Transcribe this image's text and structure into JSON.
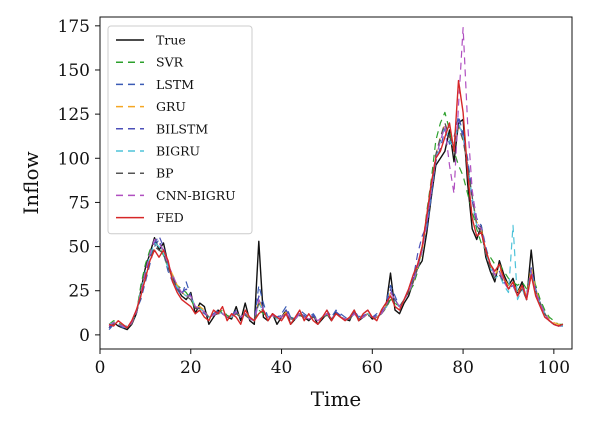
{
  "chart_data": {
    "type": "line",
    "xlabel": "Time",
    "ylabel": "Inflow",
    "xlim": [
      0,
      104
    ],
    "ylim": [
      -8,
      180
    ],
    "xticks": [
      0,
      20,
      40,
      60,
      80,
      100
    ],
    "yticks": [
      0,
      25,
      50,
      75,
      100,
      125,
      150,
      175
    ],
    "grid": false,
    "legend_position": "top-left",
    "x": [
      2,
      3,
      4,
      5,
      6,
      7,
      8,
      9,
      10,
      11,
      12,
      13,
      14,
      15,
      16,
      17,
      18,
      19,
      20,
      21,
      22,
      23,
      24,
      25,
      26,
      27,
      28,
      29,
      30,
      31,
      32,
      33,
      34,
      35,
      36,
      37,
      38,
      39,
      40,
      41,
      42,
      43,
      44,
      45,
      46,
      47,
      48,
      49,
      50,
      51,
      52,
      53,
      54,
      55,
      56,
      57,
      58,
      59,
      60,
      61,
      62,
      63,
      64,
      65,
      66,
      67,
      68,
      69,
      70,
      71,
      72,
      73,
      74,
      75,
      76,
      77,
      78,
      79,
      80,
      81,
      82,
      83,
      84,
      85,
      86,
      87,
      88,
      89,
      90,
      91,
      92,
      93,
      94,
      95,
      96,
      97,
      98,
      99,
      100,
      101,
      102
    ],
    "series": [
      {
        "name": "True",
        "color": "#111111",
        "dash": "solid",
        "values": [
          4,
          7,
          5,
          4,
          3,
          6,
          12,
          25,
          38,
          46,
          55,
          48,
          52,
          40,
          33,
          26,
          22,
          20,
          24,
          12,
          18,
          16,
          6,
          10,
          14,
          12,
          10,
          9,
          16,
          8,
          18,
          8,
          6,
          53,
          10,
          8,
          12,
          6,
          10,
          14,
          6,
          9,
          12,
          10,
          8,
          11,
          6,
          9,
          12,
          8,
          13,
          10,
          9,
          8,
          14,
          8,
          10,
          12,
          9,
          10,
          12,
          16,
          35,
          14,
          12,
          18,
          22,
          30,
          38,
          42,
          58,
          78,
          96,
          100,
          104,
          116,
          98,
          120,
          122,
          86,
          60,
          54,
          62,
          44,
          36,
          30,
          42,
          34,
          28,
          32,
          24,
          30,
          20,
          48,
          24,
          18,
          12,
          8,
          6,
          5,
          6
        ]
      },
      {
        "name": "SVR",
        "color": "#2ca02c",
        "dash": "7,5",
        "values": [
          6,
          8,
          7,
          5,
          5,
          7,
          12,
          28,
          40,
          48,
          52,
          50,
          45,
          38,
          34,
          28,
          26,
          24,
          20,
          15,
          16,
          12,
          10,
          11,
          12,
          14,
          11,
          10,
          12,
          10,
          12,
          9,
          8,
          14,
          12,
          10,
          11,
          9,
          10,
          12,
          10,
          9,
          11,
          10,
          9,
          10,
          9,
          10,
          11,
          9,
          12,
          10,
          9,
          9,
          12,
          9,
          10,
          11,
          10,
          10,
          12,
          15,
          20,
          18,
          16,
          20,
          24,
          28,
          36,
          48,
          70,
          88,
          110,
          120,
          126,
          116,
          104,
          96,
          90,
          80,
          70,
          60,
          52,
          48,
          44,
          40,
          40,
          36,
          32,
          30,
          28,
          30,
          26,
          36,
          28,
          20,
          14,
          10,
          8,
          6,
          6
        ]
      },
      {
        "name": "LSTM",
        "color": "#3b5bb5",
        "dash": "7,5",
        "values": [
          3,
          6,
          6,
          4,
          4,
          8,
          14,
          20,
          30,
          40,
          50,
          54,
          46,
          36,
          30,
          26,
          22,
          30,
          22,
          16,
          14,
          12,
          10,
          12,
          14,
          12,
          10,
          11,
          14,
          10,
          12,
          10,
          8,
          28,
          18,
          10,
          12,
          10,
          12,
          16,
          10,
          9,
          14,
          12,
          10,
          12,
          8,
          10,
          14,
          10,
          14,
          12,
          10,
          9,
          14,
          10,
          12,
          14,
          10,
          12,
          14,
          18,
          28,
          22,
          16,
          20,
          26,
          32,
          40,
          50,
          60,
          78,
          100,
          110,
          118,
          108,
          112,
          124,
          114,
          100,
          80,
          66,
          62,
          50,
          40,
          34,
          36,
          30,
          26,
          28,
          22,
          26,
          20,
          34,
          24,
          18,
          12,
          8,
          6,
          5,
          5
        ]
      },
      {
        "name": "GRU",
        "color": "#f5a623",
        "dash": "7,5",
        "values": [
          5,
          7,
          6,
          5,
          4,
          7,
          13,
          24,
          36,
          44,
          52,
          50,
          48,
          40,
          34,
          28,
          24,
          22,
          22,
          16,
          16,
          14,
          10,
          11,
          13,
          12,
          10,
          10,
          13,
          10,
          12,
          9,
          8,
          20,
          14,
          10,
          11,
          9,
          10,
          13,
          9,
          9,
          12,
          10,
          9,
          10,
          8,
          10,
          12,
          9,
          12,
          10,
          9,
          9,
          12,
          9,
          10,
          12,
          10,
          10,
          12,
          16,
          24,
          20,
          16,
          20,
          24,
          30,
          38,
          48,
          64,
          82,
          102,
          112,
          120,
          112,
          108,
          118,
          110,
          96,
          78,
          64,
          60,
          48,
          40,
          34,
          38,
          32,
          28,
          30,
          24,
          28,
          22,
          38,
          26,
          18,
          12,
          9,
          7,
          6,
          6
        ]
      },
      {
        "name": "BILSTM",
        "color": "#4b4fb8",
        "dash": "7,5",
        "values": [
          4,
          6,
          6,
          5,
          4,
          7,
          12,
          22,
          34,
          44,
          52,
          56,
          50,
          40,
          32,
          26,
          24,
          26,
          22,
          16,
          15,
          13,
          10,
          11,
          13,
          12,
          10,
          10,
          13,
          10,
          12,
          9,
          8,
          22,
          15,
          10,
          11,
          10,
          11,
          14,
          10,
          9,
          12,
          11,
          9,
          11,
          8,
          10,
          12,
          9,
          13,
          11,
          9,
          9,
          13,
          9,
          11,
          12,
          10,
          11,
          13,
          16,
          26,
          20,
          16,
          20,
          25,
          32,
          46,
          56,
          62,
          80,
          98,
          106,
          116,
          110,
          106,
          122,
          112,
          98,
          76,
          62,
          58,
          48,
          40,
          34,
          36,
          30,
          26,
          28,
          22,
          28,
          22,
          38,
          26,
          18,
          12,
          8,
          6,
          5,
          5
        ]
      },
      {
        "name": "BIGRU",
        "color": "#4fc3d9",
        "dash": "7,5",
        "values": [
          6,
          7,
          6,
          5,
          5,
          7,
          13,
          24,
          36,
          45,
          52,
          50,
          46,
          38,
          32,
          27,
          24,
          22,
          22,
          16,
          15,
          13,
          10,
          11,
          13,
          12,
          10,
          10,
          12,
          10,
          12,
          9,
          8,
          18,
          13,
          10,
          11,
          9,
          10,
          12,
          9,
          9,
          12,
          10,
          9,
          10,
          8,
          10,
          12,
          9,
          12,
          10,
          9,
          9,
          12,
          9,
          10,
          12,
          10,
          10,
          12,
          15,
          22,
          18,
          16,
          20,
          24,
          30,
          38,
          48,
          64,
          82,
          100,
          110,
          118,
          110,
          106,
          120,
          112,
          96,
          78,
          62,
          58,
          46,
          38,
          32,
          34,
          28,
          24,
          62,
          20,
          26,
          20,
          36,
          24,
          18,
          12,
          8,
          6,
          5,
          5
        ]
      },
      {
        "name": "BP",
        "color": "#555555",
        "dash": "7,5",
        "values": [
          5,
          6,
          6,
          5,
          4,
          6,
          12,
          22,
          34,
          42,
          50,
          48,
          46,
          38,
          32,
          26,
          24,
          22,
          20,
          15,
          15,
          13,
          10,
          11,
          12,
          12,
          10,
          10,
          12,
          10,
          11,
          9,
          8,
          18,
          13,
          10,
          11,
          9,
          10,
          12,
          9,
          9,
          11,
          10,
          9,
          10,
          8,
          10,
          11,
          9,
          12,
          10,
          9,
          9,
          12,
          9,
          10,
          11,
          10,
          10,
          12,
          15,
          22,
          18,
          16,
          20,
          24,
          30,
          38,
          50,
          66,
          84,
          102,
          112,
          120,
          112,
          108,
          118,
          110,
          96,
          78,
          62,
          58,
          46,
          38,
          32,
          34,
          30,
          26,
          28,
          22,
          26,
          20,
          34,
          24,
          18,
          12,
          8,
          6,
          5,
          5
        ]
      },
      {
        "name": "CNN-BIGRU",
        "color": "#b04fc0",
        "dash": "7,5",
        "values": [
          5,
          7,
          6,
          5,
          4,
          7,
          13,
          24,
          36,
          46,
          54,
          52,
          48,
          40,
          34,
          28,
          24,
          22,
          22,
          16,
          15,
          13,
          10,
          11,
          13,
          12,
          10,
          10,
          13,
          10,
          12,
          9,
          8,
          20,
          14,
          10,
          11,
          9,
          10,
          13,
          9,
          9,
          12,
          10,
          9,
          10,
          8,
          10,
          12,
          9,
          12,
          10,
          9,
          9,
          12,
          9,
          10,
          12,
          10,
          10,
          12,
          16,
          24,
          20,
          16,
          20,
          24,
          30,
          38,
          48,
          64,
          82,
          100,
          110,
          118,
          96,
          80,
          130,
          174,
          120,
          82,
          64,
          60,
          48,
          40,
          34,
          36,
          30,
          26,
          28,
          22,
          28,
          22,
          36,
          24,
          18,
          12,
          8,
          6,
          5,
          5
        ]
      },
      {
        "name": "FED",
        "color": "#d62728",
        "dash": "solid",
        "values": [
          6,
          5,
          8,
          6,
          4,
          8,
          14,
          22,
          32,
          42,
          48,
          44,
          48,
          42,
          30,
          24,
          20,
          18,
          16,
          12,
          14,
          10,
          8,
          14,
          12,
          16,
          8,
          12,
          10,
          6,
          14,
          10,
          8,
          12,
          14,
          8,
          12,
          10,
          8,
          12,
          6,
          10,
          14,
          8,
          12,
          8,
          6,
          10,
          14,
          8,
          12,
          10,
          8,
          10,
          14,
          8,
          12,
          14,
          10,
          8,
          14,
          18,
          22,
          16,
          14,
          20,
          26,
          34,
          40,
          50,
          68,
          86,
          100,
          104,
          112,
          120,
          104,
          144,
          126,
          92,
          66,
          56,
          58,
          48,
          40,
          36,
          40,
          32,
          26,
          30,
          22,
          28,
          20,
          34,
          22,
          16,
          10,
          8,
          6,
          5,
          6
        ]
      }
    ]
  }
}
